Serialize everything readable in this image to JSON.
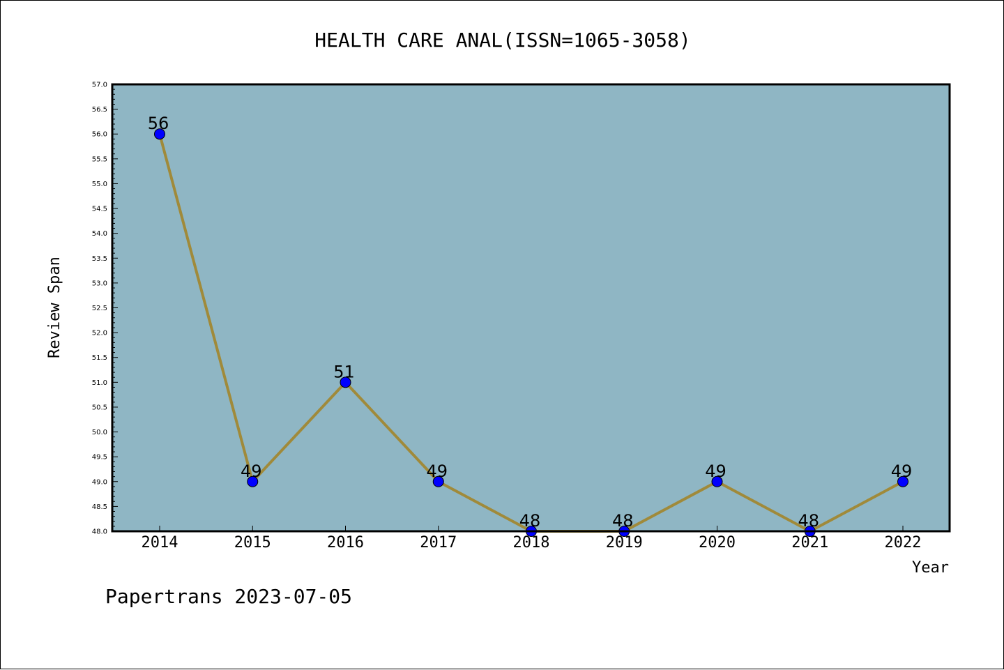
{
  "chart_data": {
    "type": "line",
    "title": "HEALTH CARE ANAL(ISSN=1065-3058)",
    "xlabel": "Year",
    "ylabel": "Review Span",
    "categories": [
      "2014",
      "2015",
      "2016",
      "2017",
      "2018",
      "2019",
      "2020",
      "2021",
      "2022"
    ],
    "series": [
      {
        "values": [
          56,
          49,
          51,
          49,
          48,
          48,
          49,
          48,
          49
        ]
      }
    ],
    "data_labels": [
      "56",
      "49",
      "51",
      "49",
      "48",
      "48",
      "49",
      "48",
      "49"
    ],
    "ylim": [
      48.0,
      57.0
    ],
    "yticks": [
      "48.0",
      "48.5",
      "49.0",
      "49.5",
      "50.0",
      "50.5",
      "51.0",
      "51.5",
      "52.0",
      "52.5",
      "53.0",
      "53.5",
      "54.0",
      "54.5",
      "55.0",
      "55.5",
      "56.0",
      "56.5",
      "57.0"
    ],
    "grid": false,
    "colors": {
      "plot_background": "#8fb6c4",
      "line": "#a08a3a",
      "marker": "#0000ff"
    }
  },
  "footer": "Papertrans 2023-07-05"
}
